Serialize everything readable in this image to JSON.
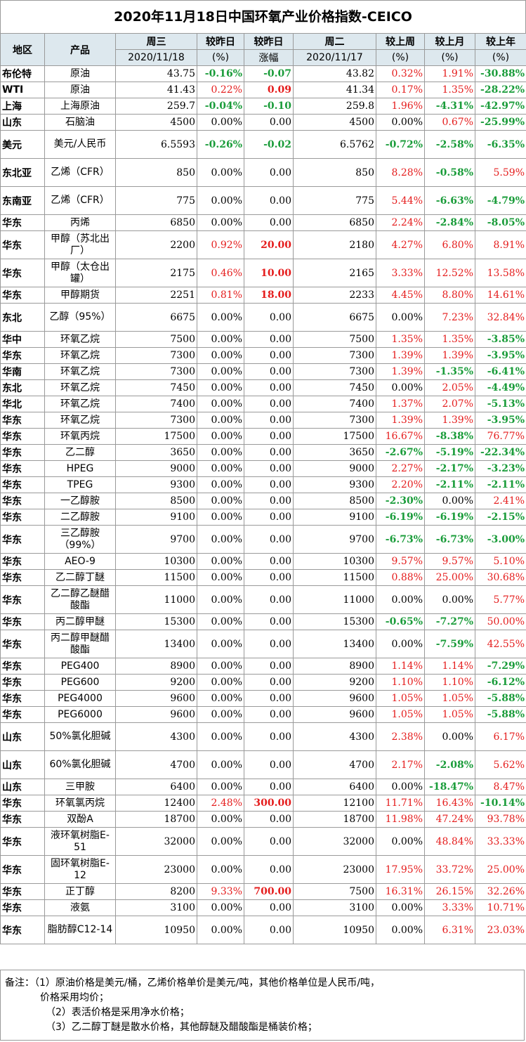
{
  "title": "2020年11月18日中国环氧产业价格指数-CEICO",
  "headers": {
    "region": "地区",
    "product": "产品",
    "wed": "周三",
    "wed_date": "2020/11/18",
    "day_chg_pct": "较昨日",
    "day_chg_pct_unit": "(%)",
    "day_chg_amt": "较昨日",
    "day_chg_amt_unit": "涨幅",
    "tue": "周二",
    "tue_date": "2020/11/17",
    "week": "较上周",
    "week_unit": "(%)",
    "month": "较上月",
    "month_unit": "(%)",
    "year": "较上年",
    "year_unit": "(%)"
  },
  "rows": [
    {
      "region": "布伦特",
      "product": "原油",
      "wed": "43.75",
      "dpct": "-0.16%",
      "damt": "-0.07",
      "tue": "43.82",
      "week": "0.32%",
      "month": "1.91%",
      "year": "-30.88%"
    },
    {
      "region": "WTI",
      "product": "原油",
      "wed": "41.43",
      "dpct": "0.22%",
      "damt": "0.09",
      "tue": "41.34",
      "week": "0.17%",
      "month": "1.35%",
      "year": "-28.22%"
    },
    {
      "region": "上海",
      "product": "上海原油",
      "wed": "259.7",
      "dpct": "-0.04%",
      "damt": "-0.10",
      "tue": "259.8",
      "week": "1.96%",
      "month": "-4.31%",
      "year": "-42.97%"
    },
    {
      "region": "山东",
      "product": "石脑油",
      "wed": "4500",
      "dpct": "0.00%",
      "damt": "0.00",
      "tue": "4500",
      "week": "0.00%",
      "month": "0.67%",
      "year": "-25.99%"
    },
    {
      "region": "美元",
      "product": "美元/人民币",
      "wed": "6.5593",
      "dpct": "-0.26%",
      "damt": "-0.02",
      "tue": "6.5762",
      "week": "-0.72%",
      "month": "-2.58%",
      "year": "-6.35%"
    },
    {
      "region": "东北亚",
      "product": "乙烯（CFR）",
      "wed": "850",
      "dpct": "0.00%",
      "damt": "0.00",
      "tue": "850",
      "week": "8.28%",
      "month": "-0.58%",
      "year": "5.59%"
    },
    {
      "region": "东南亚",
      "product": "乙烯（CFR）",
      "wed": "775",
      "dpct": "0.00%",
      "damt": "0.00",
      "tue": "775",
      "week": "5.44%",
      "month": "-6.63%",
      "year": "-4.79%"
    },
    {
      "region": "华东",
      "product": "丙烯",
      "wed": "6850",
      "dpct": "0.00%",
      "damt": "0.00",
      "tue": "6850",
      "week": "2.24%",
      "month": "-2.84%",
      "year": "-8.05%"
    },
    {
      "region": "华东",
      "product": "甲醇（苏北出厂）",
      "wed": "2200",
      "dpct": "0.92%",
      "damt": "20.00",
      "tue": "2180",
      "week": "4.27%",
      "month": "6.80%",
      "year": "8.91%"
    },
    {
      "region": "华东",
      "product": "甲醇（太仓出罐）",
      "wed": "2175",
      "dpct": "0.46%",
      "damt": "10.00",
      "tue": "2165",
      "week": "3.33%",
      "month": "12.52%",
      "year": "13.58%"
    },
    {
      "region": "华东",
      "product": "甲醇期货",
      "wed": "2251",
      "dpct": "0.81%",
      "damt": "18.00",
      "tue": "2233",
      "week": "4.45%",
      "month": "8.80%",
      "year": "14.61%"
    },
    {
      "region": "东北",
      "product": "乙醇（95%）",
      "wed": "6675",
      "dpct": "0.00%",
      "damt": "0.00",
      "tue": "6675",
      "week": "0.00%",
      "month": "7.23%",
      "year": "32.84%"
    },
    {
      "region": "华中",
      "product": "环氧乙烷",
      "wed": "7500",
      "dpct": "0.00%",
      "damt": "0.00",
      "tue": "7500",
      "week": "1.35%",
      "month": "1.35%",
      "year": "-3.85%"
    },
    {
      "region": "华东",
      "product": "环氧乙烷",
      "wed": "7300",
      "dpct": "0.00%",
      "damt": "0.00",
      "tue": "7300",
      "week": "1.39%",
      "month": "1.39%",
      "year": "-3.95%"
    },
    {
      "region": "华南",
      "product": "环氧乙烷",
      "wed": "7300",
      "dpct": "0.00%",
      "damt": "0.00",
      "tue": "7300",
      "week": "1.39%",
      "month": "-1.35%",
      "year": "-6.41%"
    },
    {
      "region": "东北",
      "product": "环氧乙烷",
      "wed": "7450",
      "dpct": "0.00%",
      "damt": "0.00",
      "tue": "7450",
      "week": "0.00%",
      "month": "2.05%",
      "year": "-4.49%"
    },
    {
      "region": "华北",
      "product": "环氧乙烷",
      "wed": "7400",
      "dpct": "0.00%",
      "damt": "0.00",
      "tue": "7400",
      "week": "1.37%",
      "month": "2.07%",
      "year": "-5.13%"
    },
    {
      "region": "华东",
      "product": "环氧乙烷",
      "wed": "7300",
      "dpct": "0.00%",
      "damt": "0.00",
      "tue": "7300",
      "week": "1.39%",
      "month": "1.39%",
      "year": "-3.95%"
    },
    {
      "region": "华东",
      "product": "环氧丙烷",
      "wed": "17500",
      "dpct": "0.00%",
      "damt": "0.00",
      "tue": "17500",
      "week": "16.67%",
      "month": "-8.38%",
      "year": "76.77%"
    },
    {
      "region": "华东",
      "product": "乙二醇",
      "wed": "3650",
      "dpct": "0.00%",
      "damt": "0.00",
      "tue": "3650",
      "week": "-2.67%",
      "month": "-5.19%",
      "year": "-22.34%"
    },
    {
      "region": "华东",
      "product": "HPEG",
      "wed": "9000",
      "dpct": "0.00%",
      "damt": "0.00",
      "tue": "9000",
      "week": "2.27%",
      "month": "-2.17%",
      "year": "-3.23%"
    },
    {
      "region": "华东",
      "product": "TPEG",
      "wed": "9300",
      "dpct": "0.00%",
      "damt": "0.00",
      "tue": "9300",
      "week": "2.20%",
      "month": "-2.11%",
      "year": "-2.11%"
    },
    {
      "region": "华东",
      "product": "一乙醇胺",
      "wed": "8500",
      "dpct": "0.00%",
      "damt": "0.00",
      "tue": "8500",
      "week": "-2.30%",
      "month": "0.00%",
      "year": "2.41%"
    },
    {
      "region": "华东",
      "product": "二乙醇胺",
      "wed": "9100",
      "dpct": "0.00%",
      "damt": "0.00",
      "tue": "9100",
      "week": "-6.19%",
      "month": "-6.19%",
      "year": "-2.15%"
    },
    {
      "region": "华东",
      "product": "三乙醇胺（99%）",
      "wed": "9700",
      "dpct": "0.00%",
      "damt": "0.00",
      "tue": "9700",
      "week": "-6.73%",
      "month": "-6.73%",
      "year": "-3.00%"
    },
    {
      "region": "华东",
      "product": "AEO-9",
      "wed": "10300",
      "dpct": "0.00%",
      "damt": "0.00",
      "tue": "10300",
      "week": "9.57%",
      "month": "9.57%",
      "year": "5.10%"
    },
    {
      "region": "华东",
      "product": "乙二醇丁醚",
      "wed": "11500",
      "dpct": "0.00%",
      "damt": "0.00",
      "tue": "11500",
      "week": "0.88%",
      "month": "25.00%",
      "year": "30.68%"
    },
    {
      "region": "华东",
      "product": "乙二醇乙醚醋酸酯",
      "wed": "11000",
      "dpct": "0.00%",
      "damt": "0.00",
      "tue": "11000",
      "week": "0.00%",
      "month": "0.00%",
      "year": "5.77%"
    },
    {
      "region": "华东",
      "product": "丙二醇甲醚",
      "wed": "15300",
      "dpct": "0.00%",
      "damt": "0.00",
      "tue": "15300",
      "week": "-0.65%",
      "month": "-7.27%",
      "year": "50.00%"
    },
    {
      "region": "华东",
      "product": "丙二醇甲醚醋酸酯",
      "wed": "13400",
      "dpct": "0.00%",
      "damt": "0.00",
      "tue": "13400",
      "week": "0.00%",
      "month": "-7.59%",
      "year": "42.55%"
    },
    {
      "region": "华东",
      "product": "PEG400",
      "wed": "8900",
      "dpct": "0.00%",
      "damt": "0.00",
      "tue": "8900",
      "week": "1.14%",
      "month": "1.14%",
      "year": "-7.29%"
    },
    {
      "region": "华东",
      "product": "PEG600",
      "wed": "9200",
      "dpct": "0.00%",
      "damt": "0.00",
      "tue": "9200",
      "week": "1.10%",
      "month": "1.10%",
      "year": "-6.12%"
    },
    {
      "region": "华东",
      "product": "PEG4000",
      "wed": "9600",
      "dpct": "0.00%",
      "damt": "0.00",
      "tue": "9600",
      "week": "1.05%",
      "month": "1.05%",
      "year": "-5.88%"
    },
    {
      "region": "华东",
      "product": "PEG6000",
      "wed": "9600",
      "dpct": "0.00%",
      "damt": "0.00",
      "tue": "9600",
      "week": "1.05%",
      "month": "1.05%",
      "year": "-5.88%"
    },
    {
      "region": "山东",
      "product": "50%氯化胆碱",
      "wed": "4300",
      "dpct": "0.00%",
      "damt": "0.00",
      "tue": "4300",
      "week": "2.38%",
      "month": "0.00%",
      "year": "6.17%"
    },
    {
      "region": "山东",
      "product": "60%氯化胆碱",
      "wed": "4700",
      "dpct": "0.00%",
      "damt": "0.00",
      "tue": "4700",
      "week": "2.17%",
      "month": "-2.08%",
      "year": "5.62%"
    },
    {
      "region": "山东",
      "product": "三甲胺",
      "wed": "6400",
      "dpct": "0.00%",
      "damt": "0.00",
      "tue": "6400",
      "week": "0.00%",
      "month": "-18.47%",
      "year": "8.47%"
    },
    {
      "region": "华东",
      "product": "环氧氯丙烷",
      "wed": "12400",
      "dpct": "2.48%",
      "damt": "300.00",
      "tue": "12100",
      "week": "11.71%",
      "month": "16.43%",
      "year": "-10.14%"
    },
    {
      "region": "华东",
      "product": "双酚A",
      "wed": "18700",
      "dpct": "0.00%",
      "damt": "0.00",
      "tue": "18700",
      "week": "11.98%",
      "month": "47.24%",
      "year": "93.78%"
    },
    {
      "region": "华东",
      "product": "液环氧树脂E-51",
      "wed": "32000",
      "dpct": "0.00%",
      "damt": "0.00",
      "tue": "32000",
      "week": "0.00%",
      "month": "48.84%",
      "year": "33.33%"
    },
    {
      "region": "华东",
      "product": "固环氧树脂E-12",
      "wed": "23000",
      "dpct": "0.00%",
      "damt": "0.00",
      "tue": "23000",
      "week": "17.95%",
      "month": "33.72%",
      "year": "25.00%"
    },
    {
      "region": "华东",
      "product": "正丁醇",
      "wed": "8200",
      "dpct": "9.33%",
      "damt": "700.00",
      "tue": "7500",
      "week": "16.31%",
      "month": "26.15%",
      "year": "32.26%"
    },
    {
      "region": "华东",
      "product": "液氨",
      "wed": "3100",
      "dpct": "0.00%",
      "damt": "0.00",
      "tue": "3100",
      "week": "0.00%",
      "month": "3.33%",
      "year": "10.71%"
    },
    {
      "region": "华东",
      "product": "脂肪醇C12-14",
      "wed": "10950",
      "dpct": "0.00%",
      "damt": "0.00",
      "tue": "10950",
      "week": "0.00%",
      "month": "6.31%",
      "year": "23.03%"
    }
  ],
  "notes": {
    "line1": "备注：（1）原油价格是美元/桶，乙烯价格单价是美元/吨，其他价格单位是人民币/吨，",
    "line2": "价格采用均价；",
    "line3": "（2）表活价格是采用净水价格；",
    "line4": "（3）乙二醇丁醚是散水价格，其他醇醚及醋酸酯是桶装价格；"
  }
}
